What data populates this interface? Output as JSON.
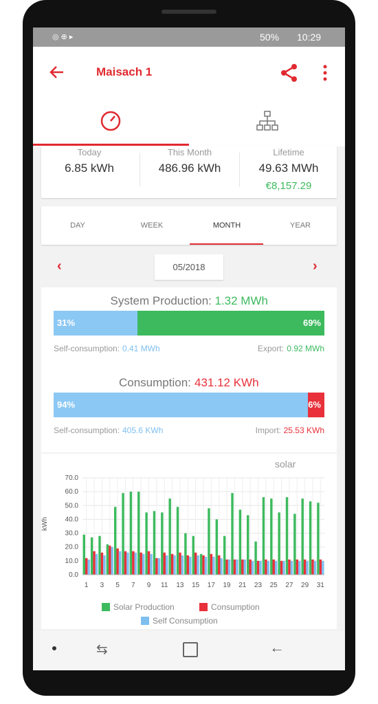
{
  "status_bar": {
    "battery": "50%",
    "time": "10:29"
  },
  "app_bar": {
    "title": "Maisach 1"
  },
  "summary": [
    {
      "label": "Today",
      "value": "6.85 kWh"
    },
    {
      "label": "This Month",
      "value": "486.96 kWh"
    },
    {
      "label": "Lifetime",
      "value": "49.63 MWh",
      "extra": "€8,157.29"
    }
  ],
  "period_tabs": [
    "DAY",
    "WEEK",
    "MONTH",
    "YEAR"
  ],
  "date": "05/2018",
  "production": {
    "title": "System Production:",
    "total": "1.32 MWh",
    "bar": {
      "values": [
        31,
        69
      ],
      "value_labels": [
        "31%",
        "69%"
      ],
      "colors": [
        "#8cc8f4",
        "#3dba5e"
      ]
    },
    "left_label": "Self-consumption:",
    "left_value": "0.41 MWh",
    "right_label": "Export:",
    "right_value": "0.92 MWh"
  },
  "consumption": {
    "title": "Consumption:",
    "total": "431.12 KWh",
    "bar": {
      "values": [
        94,
        6
      ],
      "value_labels": [
        "94%",
        "6%"
      ],
      "colors": [
        "#8cc8f4",
        "#e8313a"
      ]
    },
    "left_label": "Self-consumption:",
    "left_value": "405.6 KWh",
    "right_label": "Import:",
    "right_value": "25.53 KWh"
  },
  "logo": "solar",
  "chart_data": {
    "type": "bar",
    "y_label": "kWh",
    "categories": [
      "1",
      null,
      "3",
      null,
      "5",
      null,
      "7",
      null,
      "9",
      null,
      "11",
      null,
      "13",
      null,
      "15",
      null,
      "17",
      null,
      "19",
      null,
      "21",
      null,
      "23",
      null,
      "25",
      null,
      "27",
      null,
      "29",
      null,
      "31"
    ],
    "series": [
      {
        "name": "Solar Production",
        "color": "#3dba5e",
        "values": [
          29,
          27,
          28,
          22,
          49,
          59,
          60,
          60,
          45,
          46,
          45,
          55,
          49,
          30,
          28,
          15,
          48,
          40,
          28,
          59,
          47,
          43,
          24,
          56,
          55,
          45,
          56,
          44,
          55,
          53,
          52
        ]
      },
      {
        "name": "Consumption",
        "color": "#e8313a",
        "values": [
          12,
          17,
          16,
          21,
          19,
          17,
          17,
          16,
          17,
          12,
          16,
          15,
          16,
          14,
          16,
          14,
          15,
          14,
          11,
          11,
          11,
          11,
          10,
          11,
          11,
          10,
          11,
          11,
          11,
          11,
          11
        ]
      },
      {
        "name": "Self Consumption",
        "color": "#7fbff0",
        "values": [
          11,
          15,
          14,
          20,
          17,
          16,
          16,
          15,
          15,
          12,
          14,
          14,
          14,
          13,
          14,
          13,
          13,
          12,
          11,
          11,
          11,
          10,
          10,
          10,
          10,
          10,
          10,
          10,
          10,
          10,
          10
        ]
      }
    ],
    "ylim": [
      0,
      70
    ],
    "yticks": [
      {
        "value": 0,
        "label": "0.0"
      },
      {
        "value": 10,
        "label": "10.0"
      },
      {
        "value": 20,
        "label": "20.0"
      },
      {
        "value": 30,
        "label": "30.0"
      },
      {
        "value": 40,
        "label": "40.0"
      },
      {
        "value": 50,
        "label": "50.0"
      },
      {
        "value": 60,
        "label": "60.0"
      },
      {
        "value": 70,
        "label": "70.0"
      }
    ],
    "grid": true
  }
}
